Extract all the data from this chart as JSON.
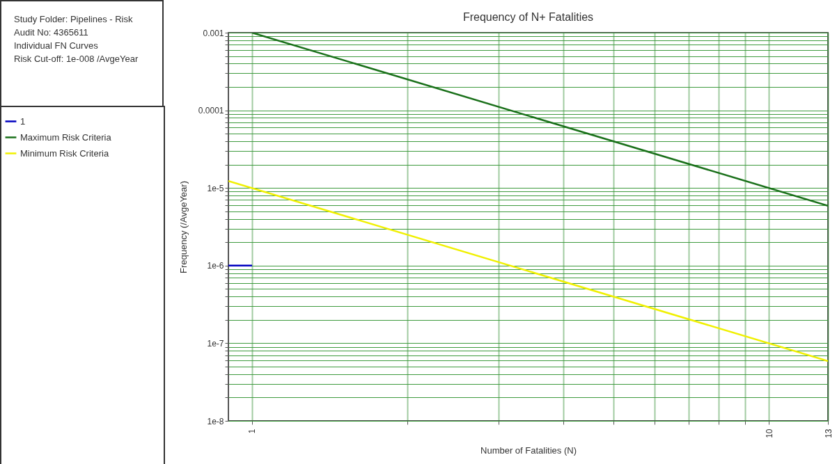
{
  "chart_data": {
    "type": "line",
    "title": "Frequency of N+ Fatalities",
    "xlabel": "Number of Fatalities (N)",
    "ylabel": "Frequency (/AvgeYear)",
    "annotations": [
      "Study Folder: Pipelines - Risk",
      "Audit No: 4365611",
      "Individual FN Curves",
      "Risk Cut-off: 1e-008 /AvgeYear"
    ],
    "log": "xy",
    "grid": true,
    "legend": "left",
    "line_style": "solid",
    "marker": "none",
    "xlim": [
      0.9,
      13
    ],
    "ylim": [
      1e-08,
      0.001
    ],
    "xticks": [
      1,
      {
        "value": 2,
        "label": null
      },
      {
        "value": 3,
        "label": null
      },
      {
        "value": 4,
        "label": null
      },
      {
        "value": 5,
        "label": null
      },
      {
        "value": 6,
        "label": null
      },
      {
        "value": 7,
        "label": null
      },
      {
        "value": 8,
        "label": null
      },
      {
        "value": 9,
        "label": null
      },
      10,
      13
    ],
    "yticks": [
      {
        "value": 1e-08,
        "label": "1e-8"
      },
      {
        "value": 2e-08,
        "label": null
      },
      {
        "value": 3e-08,
        "label": null
      },
      {
        "value": 4e-08,
        "label": null
      },
      {
        "value": 5e-08,
        "label": null
      },
      {
        "value": 6e-08,
        "label": null
      },
      {
        "value": 7e-08,
        "label": null
      },
      {
        "value": 8e-08,
        "label": null
      },
      {
        "value": 9e-08,
        "label": null
      },
      {
        "value": 1e-07,
        "label": "1e-7"
      },
      {
        "value": 2e-07,
        "label": null
      },
      {
        "value": 3e-07,
        "label": null
      },
      {
        "value": 4e-07,
        "label": null
      },
      {
        "value": 5e-07,
        "label": null
      },
      {
        "value": 6e-07,
        "label": null
      },
      {
        "value": 7e-07,
        "label": null
      },
      {
        "value": 8e-07,
        "label": null
      },
      {
        "value": 9e-07,
        "label": null
      },
      {
        "value": 1e-06,
        "label": "1e-6"
      },
      {
        "value": 2e-06,
        "label": null
      },
      {
        "value": 3e-06,
        "label": null
      },
      {
        "value": 4e-06,
        "label": null
      },
      {
        "value": 5e-06,
        "label": null
      },
      {
        "value": 6e-06,
        "label": null
      },
      {
        "value": 7e-06,
        "label": null
      },
      {
        "value": 8e-06,
        "label": null
      },
      {
        "value": 9e-06,
        "label": null
      },
      {
        "value": 1e-05,
        "label": "1e-5"
      },
      {
        "value": 2e-05,
        "label": null
      },
      {
        "value": 3e-05,
        "label": null
      },
      {
        "value": 4e-05,
        "label": null
      },
      {
        "value": 5e-05,
        "label": null
      },
      {
        "value": 6e-05,
        "label": null
      },
      {
        "value": 7e-05,
        "label": null
      },
      {
        "value": 8e-05,
        "label": null
      },
      {
        "value": 9e-05,
        "label": null
      },
      {
        "value": 0.0001,
        "label": "0.0001"
      },
      {
        "value": 0.0002,
        "label": null
      },
      {
        "value": 0.0003,
        "label": null
      },
      {
        "value": 0.0004,
        "label": null
      },
      {
        "value": 0.0005,
        "label": null
      },
      {
        "value": 0.0006,
        "label": null
      },
      {
        "value": 0.0007,
        "label": null
      },
      {
        "value": 0.0008,
        "label": null
      },
      {
        "value": 0.0009,
        "label": null
      },
      {
        "value": 0.001,
        "label": "0.001"
      }
    ],
    "series": [
      {
        "name": "1",
        "color": "#0000c0",
        "x": [
          0.9,
          1
        ],
        "values": [
          1e-06,
          1e-06
        ]
      },
      {
        "name": "Maximum Risk Criteria",
        "color": "#1a701a",
        "x": [
          1,
          13
        ],
        "values": [
          0.001,
          5.9e-06
        ]
      },
      {
        "name": "Minimum Risk Criteria",
        "color": "#f0f000",
        "x": [
          0.9,
          13
        ],
        "values": [
          1.23e-05,
          5.9e-08
        ]
      }
    ]
  }
}
